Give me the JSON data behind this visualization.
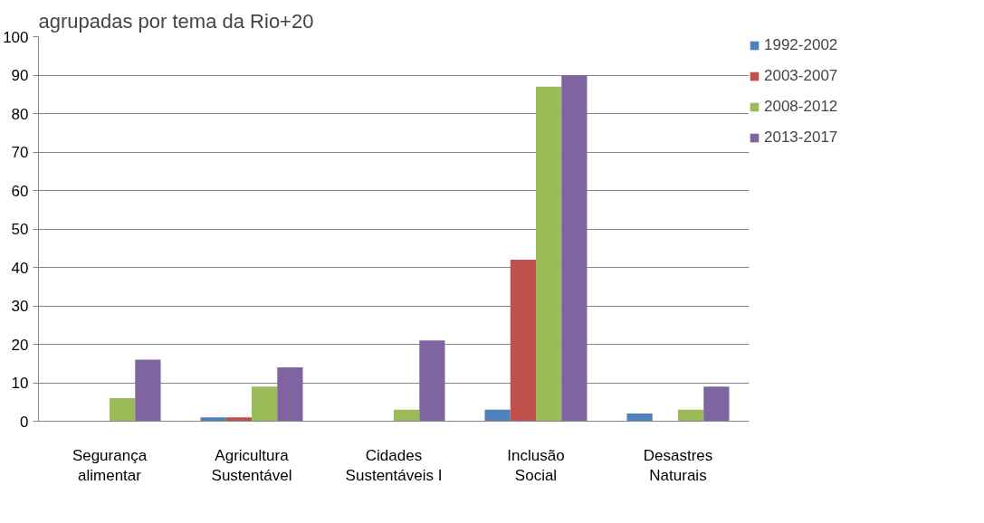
{
  "chart_data": {
    "type": "bar",
    "title": "agrupadas por tema da Rio+20",
    "categories": [
      "Segurança alimentar",
      "Agricultura Sustentável",
      "Cidades Sustentáveis I",
      "Inclusão Social",
      "Desastres Naturais"
    ],
    "series": [
      {
        "name": "1992-2002",
        "color": "#4f81bd",
        "values": [
          0,
          1,
          0,
          3,
          2
        ]
      },
      {
        "name": "2003-2007",
        "color": "#c0504d",
        "values": [
          0,
          1,
          0,
          42,
          0
        ]
      },
      {
        "name": "2008-2012",
        "color": "#9bbb59",
        "values": [
          6,
          9,
          3,
          87,
          3
        ]
      },
      {
        "name": "2013-2017",
        "color": "#8064a2",
        "values": [
          16,
          14,
          21,
          90,
          9
        ]
      }
    ],
    "ylim": [
      0,
      100
    ],
    "yticks": [
      0,
      10,
      20,
      30,
      40,
      50,
      60,
      70,
      80,
      90,
      100
    ],
    "grid": "y",
    "legend": "right"
  }
}
